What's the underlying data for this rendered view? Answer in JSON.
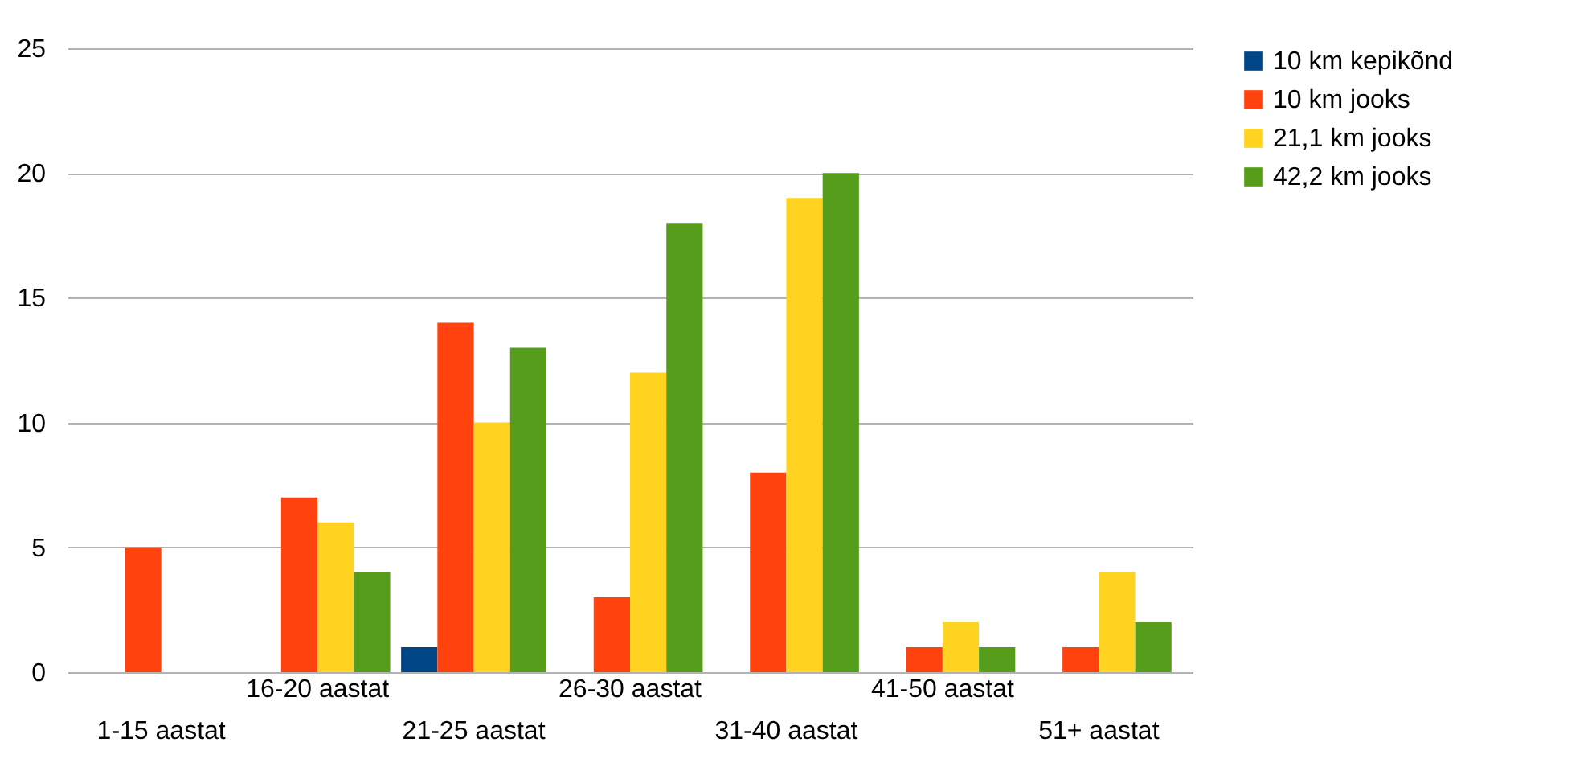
{
  "chart_data": {
    "type": "bar",
    "categories": [
      "1-15 aastat",
      "16-20 aastat",
      "21-25 aastat",
      "26-30 aastat",
      "31-40 aastat",
      "41-50 aastat",
      "51+ aastat"
    ],
    "series": [
      {
        "name": "10 km kepikõnd",
        "color": "#004586",
        "values": [
          0,
          0,
          1,
          0,
          0,
          0,
          0
        ]
      },
      {
        "name": "10 km jooks",
        "color": "#ff420e",
        "values": [
          5,
          7,
          14,
          3,
          8,
          1,
          1
        ]
      },
      {
        "name": "21,1 km jooks",
        "color": "#ffd320",
        "values": [
          0,
          6,
          10,
          12,
          19,
          2,
          4
        ]
      },
      {
        "name": "42,2 km jooks",
        "color": "#579d1c",
        "values": [
          0,
          4,
          13,
          18,
          20,
          1,
          2
        ]
      }
    ],
    "ylim": [
      0,
      25
    ],
    "yticks": [
      0,
      5,
      10,
      15,
      20,
      25
    ],
    "grid": "y",
    "legend": "right"
  }
}
